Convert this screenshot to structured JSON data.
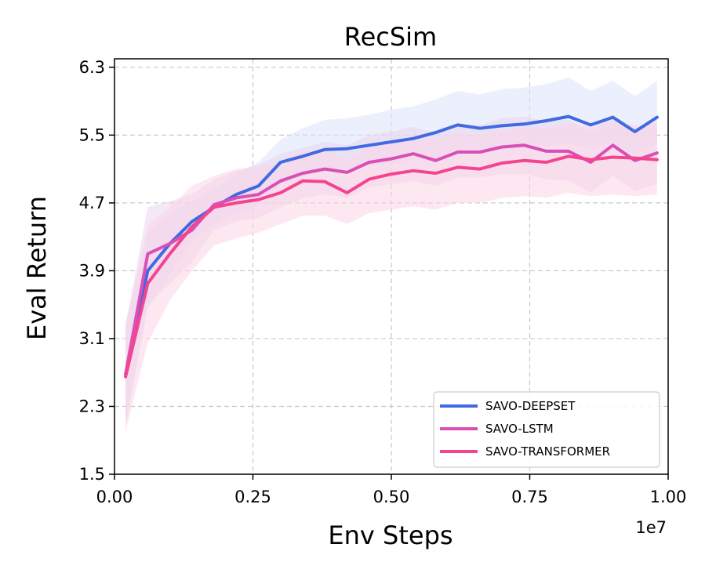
{
  "chart_data": {
    "type": "line",
    "title": "RecSim",
    "xlabel": "Env Steps",
    "ylabel": "Eval Return",
    "x_offset_label": "1e7",
    "xlim": [
      0.0,
      1.0
    ],
    "ylim": [
      1.5,
      6.4
    ],
    "xticks": [
      0.0,
      0.25,
      0.5,
      0.75,
      1.0
    ],
    "xtick_labels": [
      "0.00",
      "0.25",
      "0.50",
      "0.75",
      "1.00"
    ],
    "yticks": [
      1.5,
      2.3,
      3.1,
      3.9,
      4.7,
      5.5,
      6.3
    ],
    "ytick_labels": [
      "1.5",
      "2.3",
      "3.1",
      "3.9",
      "4.7",
      "5.5",
      "6.3"
    ],
    "grid": true,
    "legend_position": "lower-right",
    "x": [
      0.02,
      0.06,
      0.1,
      0.14,
      0.18,
      0.22,
      0.26,
      0.3,
      0.34,
      0.38,
      0.42,
      0.46,
      0.5,
      0.54,
      0.58,
      0.62,
      0.66,
      0.7,
      0.74,
      0.78,
      0.82,
      0.86,
      0.9,
      0.94,
      0.98
    ],
    "series": [
      {
        "name": "SAVO-DEEPSET",
        "color": "#4169e1",
        "band_color": "#dce3fa",
        "values": [
          2.68,
          3.9,
          4.22,
          4.48,
          4.65,
          4.8,
          4.9,
          5.18,
          5.25,
          5.33,
          5.34,
          5.38,
          5.42,
          5.46,
          5.53,
          5.62,
          5.58,
          5.61,
          5.63,
          5.67,
          5.72,
          5.62,
          5.71,
          5.54,
          5.71
        ],
        "lower": [
          2.05,
          3.45,
          3.85,
          4.25,
          4.45,
          4.58,
          4.66,
          4.92,
          5.0,
          5.08,
          5.1,
          5.14,
          5.16,
          5.2,
          5.24,
          5.32,
          5.3,
          5.32,
          5.34,
          5.36,
          5.4,
          5.34,
          5.4,
          5.26,
          5.4
        ],
        "upper": [
          3.3,
          4.35,
          4.58,
          4.72,
          4.86,
          5.05,
          5.18,
          5.45,
          5.58,
          5.68,
          5.7,
          5.74,
          5.8,
          5.84,
          5.92,
          6.02,
          5.98,
          6.04,
          6.06,
          6.1,
          6.18,
          6.02,
          6.14,
          5.96,
          6.14
        ]
      },
      {
        "name": "SAVO-LSTM",
        "color": "#d94fb6",
        "band_color": "#e9d6ef",
        "values": [
          2.68,
          4.1,
          4.22,
          4.38,
          4.68,
          4.76,
          4.8,
          4.96,
          5.05,
          5.1,
          5.06,
          5.18,
          5.22,
          5.28,
          5.2,
          5.3,
          5.3,
          5.36,
          5.38,
          5.31,
          5.31,
          5.18,
          5.38,
          5.2,
          5.29
        ],
        "lower": [
          2.1,
          3.5,
          3.75,
          4.0,
          4.38,
          4.48,
          4.52,
          4.65,
          4.75,
          4.8,
          4.76,
          4.88,
          4.92,
          4.96,
          4.9,
          5.0,
          5.0,
          5.04,
          5.04,
          4.98,
          4.96,
          4.82,
          5.02,
          4.84,
          4.92
        ],
        "upper": [
          3.25,
          4.65,
          4.72,
          4.8,
          4.98,
          5.08,
          5.15,
          5.28,
          5.35,
          5.42,
          5.38,
          5.5,
          5.54,
          5.6,
          5.52,
          5.62,
          5.62,
          5.7,
          5.72,
          5.66,
          5.68,
          5.56,
          5.74,
          5.58,
          5.66
        ]
      },
      {
        "name": "SAVO-TRANSFORMER",
        "color": "#f5448f",
        "band_color": "#fbd6e6",
        "values": [
          2.65,
          3.75,
          4.1,
          4.42,
          4.65,
          4.7,
          4.74,
          4.82,
          4.96,
          4.95,
          4.82,
          4.98,
          5.04,
          5.08,
          5.05,
          5.12,
          5.1,
          5.17,
          5.2,
          5.18,
          5.25,
          5.21,
          5.24,
          5.23,
          5.21
        ],
        "lower": [
          2.0,
          3.05,
          3.55,
          3.9,
          4.2,
          4.28,
          4.35,
          4.45,
          4.55,
          4.55,
          4.45,
          4.58,
          4.62,
          4.66,
          4.62,
          4.7,
          4.7,
          4.76,
          4.78,
          4.76,
          4.82,
          4.78,
          4.8,
          4.78,
          4.8
        ],
        "upper": [
          3.25,
          4.45,
          4.65,
          4.9,
          5.02,
          5.1,
          5.12,
          5.18,
          5.32,
          5.32,
          5.2,
          5.36,
          5.42,
          5.46,
          5.44,
          5.52,
          5.5,
          5.56,
          5.6,
          5.58,
          5.64,
          5.6,
          5.64,
          5.62,
          5.62
        ]
      }
    ]
  }
}
